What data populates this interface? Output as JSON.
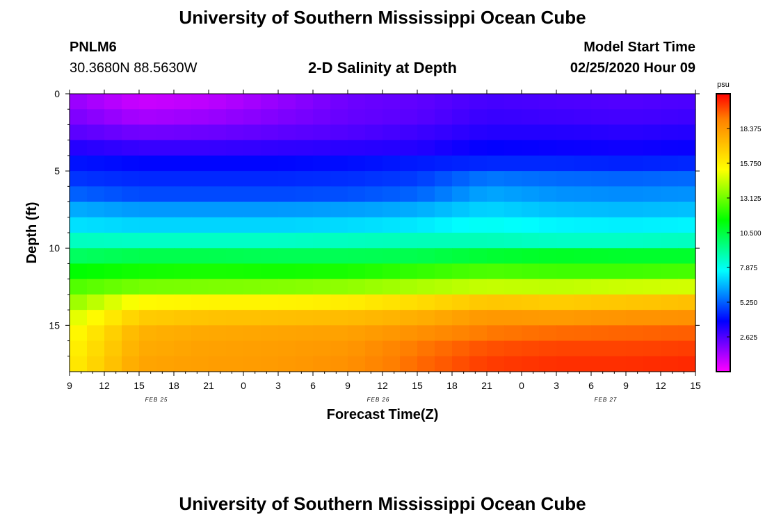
{
  "header": {
    "title_top": "University of Southern Mississippi Ocean Cube",
    "station_id": "PNLM6",
    "station_coords": "30.3680N 88.5630W",
    "plot_title": "2-D Salinity at Depth",
    "model_start_label": "Model Start Time",
    "model_start_value": "02/25/2020 Hour 09",
    "title_bottom": "University of Southern Mississippi Ocean Cube"
  },
  "chart_data": {
    "type": "heatmap",
    "title": "2-D Salinity at Depth",
    "xlabel": "Forecast Time(Z)",
    "ylabel": "Depth (ft)",
    "x_tick_labels": [
      "9",
      "12",
      "15",
      "18",
      "21",
      "0",
      "3",
      "6",
      "9",
      "12",
      "15",
      "18",
      "21",
      "0",
      "3",
      "6",
      "9",
      "12",
      "15"
    ],
    "x_date_labels": [
      "FEB 25",
      "FEB 26",
      "FEB 27"
    ],
    "x_range_hours": [
      0,
      54
    ],
    "y_ticks": [
      0,
      5,
      10,
      15
    ],
    "y_range_ft": [
      0,
      18
    ],
    "y_reversed": true,
    "colorbar": {
      "unit": "psu",
      "ticks": [
        "2.625",
        "5.250",
        "7.875",
        "10.500",
        "13.125",
        "15.750",
        "18.375"
      ],
      "range": [
        0,
        21
      ],
      "colors": [
        "#ff00ff",
        "#8000ff",
        "#0000ff",
        "#0080ff",
        "#00ffff",
        "#00ff80",
        "#00ff00",
        "#80ff00",
        "#ffff00",
        "#ffc000",
        "#ff8000",
        "#ff0000"
      ]
    },
    "depth_layers_ft": [
      0,
      1,
      2,
      3,
      4,
      5,
      6,
      7,
      8,
      9,
      10,
      11,
      12,
      13,
      14,
      15,
      16,
      17
    ],
    "time_hours": [
      0,
      6,
      12,
      18,
      24,
      30,
      36,
      42,
      48,
      54
    ],
    "salinity_psu": [
      [
        1.6,
        0.8,
        1.0,
        1.6,
        2.2,
        2.4,
        2.8,
        2.7,
        2.6,
        2.7
      ],
      [
        2.0,
        1.3,
        1.5,
        1.9,
        2.3,
        2.5,
        3.0,
        2.9,
        2.8,
        2.9
      ],
      [
        2.5,
        2.1,
        2.2,
        2.4,
        2.6,
        2.9,
        3.3,
        3.3,
        3.2,
        3.3
      ],
      [
        3.3,
        3.0,
        3.0,
        3.1,
        3.2,
        3.3,
        3.8,
        3.7,
        3.6,
        3.7
      ],
      [
        4.1,
        3.9,
        3.9,
        3.9,
        4.0,
        4.2,
        4.4,
        4.4,
        4.3,
        4.4
      ],
      [
        4.6,
        4.4,
        4.4,
        4.4,
        4.5,
        4.7,
        5.6,
        5.4,
        5.3,
        5.4
      ],
      [
        5.3,
        4.9,
        4.9,
        4.9,
        5.0,
        5.3,
        6.3,
        6.0,
        5.9,
        6.0
      ],
      [
        6.4,
        6.1,
        6.1,
        6.1,
        6.2,
        6.4,
        7.0,
        6.7,
        6.6,
        6.7
      ],
      [
        7.2,
        7.0,
        7.0,
        7.0,
        7.1,
        7.3,
        7.8,
        7.5,
        7.4,
        7.5
      ],
      [
        8.6,
        8.5,
        8.5,
        8.5,
        8.6,
        8.7,
        8.7,
        8.5,
        8.5,
        8.6
      ],
      [
        10.0,
        10.3,
        10.3,
        10.2,
        10.2,
        10.3,
        10.7,
        10.9,
        10.8,
        10.8
      ],
      [
        11.4,
        11.7,
        11.8,
        11.7,
        11.8,
        12.2,
        12.6,
        12.4,
        12.4,
        12.5
      ],
      [
        12.6,
        13.2,
        13.3,
        13.4,
        13.6,
        14.0,
        14.4,
        14.3,
        14.5,
        14.6
      ],
      [
        13.6,
        15.4,
        15.6,
        15.6,
        15.8,
        16.3,
        17.0,
        16.8,
        17.0,
        17.2
      ],
      [
        14.6,
        16.8,
        17.1,
        17.2,
        17.3,
        17.7,
        18.4,
        18.3,
        18.5,
        18.6
      ],
      [
        15.2,
        17.6,
        17.9,
        18.0,
        18.1,
        18.6,
        19.2,
        19.4,
        19.5,
        19.6
      ],
      [
        15.5,
        17.8,
        18.1,
        18.2,
        18.4,
        19.2,
        19.8,
        20.0,
        20.0,
        20.1
      ],
      [
        15.7,
        18.0,
        18.2,
        18.3,
        18.6,
        19.4,
        20.1,
        20.3,
        20.3,
        20.4
      ]
    ]
  }
}
